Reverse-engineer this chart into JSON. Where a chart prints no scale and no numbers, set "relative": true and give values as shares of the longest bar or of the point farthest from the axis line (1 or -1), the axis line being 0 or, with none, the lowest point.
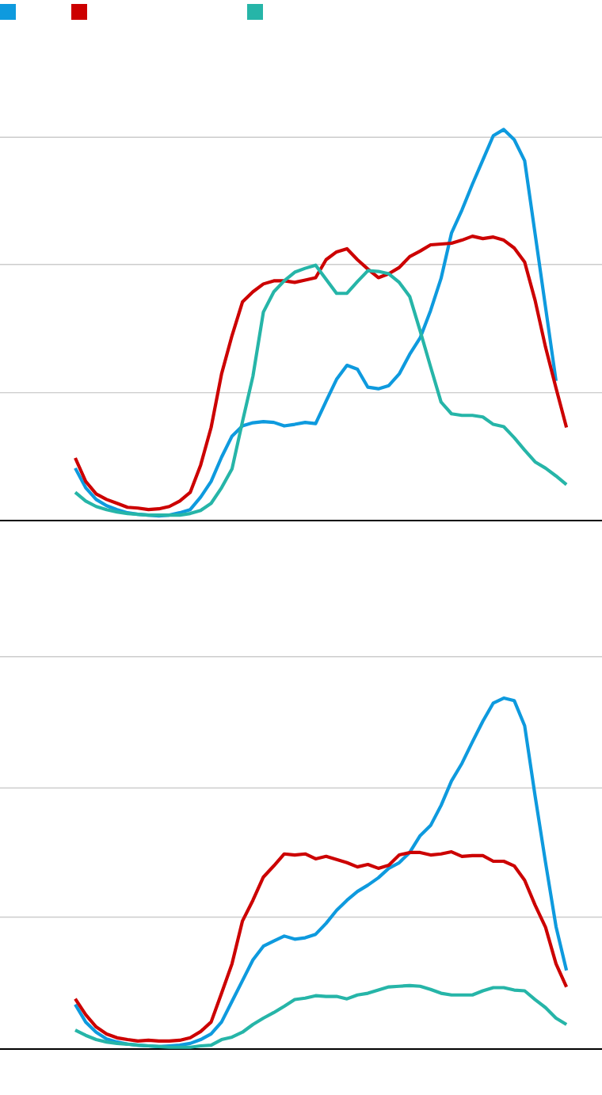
{
  "chart_data": [
    {
      "type": "line",
      "relative": true,
      "categories": [
        null,
        null,
        null,
        null,
        null,
        null,
        null,
        null,
        null,
        null,
        null,
        null,
        null,
        null,
        null,
        null,
        null,
        null,
        null,
        null,
        null,
        null,
        null,
        null,
        null,
        null,
        null,
        null,
        null,
        null,
        null,
        null,
        null,
        null,
        null,
        null,
        null,
        null,
        null,
        null,
        null,
        null,
        null,
        null,
        null,
        null,
        null,
        null
      ],
      "ref_lines": [
        {
          "axis": "y",
          "value": 0.327,
          "color": "#cccccc"
        },
        {
          "axis": "y",
          "value": 0.655,
          "color": "#cccccc"
        },
        {
          "axis": "y",
          "value": 0.98,
          "color": "#cccccc"
        }
      ],
      "series": [
        {
          "color": "#0e9ade",
          "values": [
            0.134,
            0.084,
            0.054,
            0.038,
            0.028,
            0.02,
            0.016,
            0.014,
            0.012,
            0.014,
            0.02,
            0.028,
            0.06,
            0.1,
            0.162,
            0.216,
            0.242,
            0.25,
            0.253,
            0.251,
            0.242,
            0.246,
            0.251,
            0.248,
            0.305,
            0.361,
            0.397,
            0.387,
            0.341,
            0.337,
            0.345,
            0.375,
            0.425,
            0.467,
            0.537,
            0.619,
            0.735,
            0.794,
            0.86,
            0.922,
            0.984,
            1,
            0.974,
            0.92,
            0.733,
            0.545,
            0.357,
            null
          ]
        },
        {
          "color": "#cc0000",
          "values": [
            0.16,
            0.1,
            0.068,
            0.054,
            0.044,
            0.034,
            0.032,
            0.028,
            0.03,
            0.036,
            0.05,
            0.072,
            0.142,
            0.238,
            0.375,
            0.473,
            0.559,
            0.585,
            0.605,
            0.613,
            0.613,
            0.609,
            0.615,
            0.621,
            0.667,
            0.687,
            0.695,
            0.667,
            0.643,
            0.621,
            0.631,
            0.647,
            0.675,
            0.689,
            0.705,
            0.707,
            0.709,
            0.717,
            0.727,
            0.721,
            0.725,
            0.717,
            0.697,
            0.661,
            0.563,
            0.443,
            0.339,
            0.238
          ]
        },
        {
          "color": "#26b5a8",
          "values": [
            0.072,
            0.05,
            0.036,
            0.028,
            0.022,
            0.018,
            0.016,
            0.014,
            0.014,
            0.014,
            0.014,
            0.018,
            0.026,
            0.044,
            0.084,
            0.132,
            0.253,
            0.369,
            0.533,
            0.585,
            0.613,
            0.635,
            0.645,
            0.653,
            0.617,
            0.581,
            0.581,
            0.611,
            0.639,
            0.637,
            0.631,
            0.609,
            0.573,
            0.485,
            0.393,
            0.303,
            0.273,
            0.269,
            0.269,
            0.265,
            0.246,
            0.24,
            0.212,
            0.18,
            0.15,
            0.134,
            0.114,
            0.092
          ]
        }
      ]
    },
    {
      "type": "line",
      "relative": true,
      "categories": [
        null,
        null,
        null,
        null,
        null,
        null,
        null,
        null,
        null,
        null,
        null,
        null,
        null,
        null,
        null,
        null,
        null,
        null,
        null,
        null,
        null,
        null,
        null,
        null,
        null,
        null,
        null,
        null,
        null,
        null,
        null,
        null,
        null,
        null,
        null,
        null,
        null,
        null,
        null,
        null,
        null,
        null,
        null,
        null,
        null,
        null,
        null,
        null
      ],
      "ref_lines": [
        {
          "axis": "y",
          "value": 0.376,
          "color": "#cccccc"
        },
        {
          "axis": "y",
          "value": 0.744,
          "color": "#cccccc"
        },
        {
          "axis": "y",
          "value": 1.118,
          "color": "#cccccc"
        }
      ],
      "series": [
        {
          "color": "#0e9ade",
          "values": [
            0.127,
            0.077,
            0.048,
            0.029,
            0.02,
            0.014,
            0.011,
            0.009,
            0.007,
            0.009,
            0.011,
            0.016,
            0.027,
            0.043,
            0.077,
            0.136,
            0.195,
            0.254,
            0.293,
            0.308,
            0.322,
            0.313,
            0.317,
            0.327,
            0.358,
            0.395,
            0.424,
            0.449,
            0.467,
            0.488,
            0.515,
            0.531,
            0.56,
            0.608,
            0.637,
            0.694,
            0.764,
            0.814,
            0.875,
            0.934,
            0.986,
            1,
            0.993,
            0.921,
            0.721,
            0.531,
            0.349,
            0.224
          ]
        },
        {
          "color": "#cc0000",
          "values": [
            0.143,
            0.098,
            0.063,
            0.043,
            0.032,
            0.027,
            0.023,
            0.025,
            0.023,
            0.023,
            0.025,
            0.032,
            0.05,
            0.077,
            0.159,
            0.243,
            0.365,
            0.424,
            0.49,
            0.522,
            0.556,
            0.553,
            0.556,
            0.542,
            0.549,
            0.54,
            0.531,
            0.519,
            0.526,
            0.515,
            0.524,
            0.553,
            0.56,
            0.56,
            0.553,
            0.556,
            0.562,
            0.549,
            0.551,
            0.551,
            0.535,
            0.535,
            0.522,
            0.481,
            0.41,
            0.347,
            0.243,
            0.177
          ]
        },
        {
          "color": "#26b5a8",
          "values": [
            0.054,
            0.039,
            0.027,
            0.02,
            0.016,
            0.014,
            0.011,
            0.009,
            0.007,
            0.005,
            0.005,
            0.005,
            0.009,
            0.011,
            0.027,
            0.034,
            0.048,
            0.07,
            0.088,
            0.104,
            0.122,
            0.141,
            0.145,
            0.152,
            0.15,
            0.15,
            0.143,
            0.154,
            0.159,
            0.168,
            0.177,
            0.179,
            0.181,
            0.179,
            0.17,
            0.159,
            0.154,
            0.154,
            0.154,
            0.166,
            0.175,
            0.175,
            0.168,
            0.166,
            0.141,
            0.118,
            0.088,
            0.07
          ]
        }
      ]
    }
  ]
}
